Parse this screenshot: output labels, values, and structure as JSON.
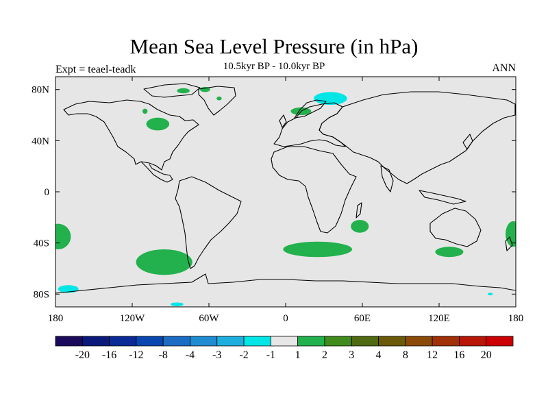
{
  "title": "Mean Sea Level Pressure (in hPa)",
  "subtitle": "10.5kyr BP - 10.0kyr BP",
  "left_label": "Expt = teael-teadk",
  "right_label": "ANN",
  "colors": {
    "background_field": "#e6e6e6",
    "coast": "#000000",
    "green": "#22b14c",
    "cyan": "#00e6e6"
  },
  "map": {
    "lon_range": [
      -180,
      180
    ],
    "lat_range": [
      -90,
      90
    ],
    "lat_ticks": [
      {
        "value": 80,
        "label": "80N"
      },
      {
        "value": 40,
        "label": "40N"
      },
      {
        "value": 0,
        "label": "0"
      },
      {
        "value": -40,
        "label": "40S"
      },
      {
        "value": -80,
        "label": "80S"
      }
    ],
    "lon_ticks": [
      {
        "value": -180,
        "label": "180"
      },
      {
        "value": -120,
        "label": "120W"
      },
      {
        "value": -60,
        "label": "60W"
      },
      {
        "value": 0,
        "label": "0"
      },
      {
        "value": 60,
        "label": "60E"
      },
      {
        "value": 120,
        "label": "120E"
      },
      {
        "value": 180,
        "label": "180"
      }
    ],
    "anomaly_regions": [
      {
        "name": "north-atlantic-nw",
        "sign": "positive",
        "lon": -100,
        "lat": 53,
        "rlon": 9,
        "rlat": 5
      },
      {
        "name": "hudson-bay-patch",
        "sign": "positive",
        "lon": -110,
        "lat": 63,
        "rlon": 2,
        "rlat": 2
      },
      {
        "name": "arctic-canada-patch",
        "sign": "positive",
        "lon": -80,
        "lat": 79,
        "rlon": 5,
        "rlat": 2
      },
      {
        "name": "arctic-canada-patch-2",
        "sign": "positive",
        "lon": -63,
        "lat": 80,
        "rlon": 4,
        "rlat": 2
      },
      {
        "name": "greenland-east-patch",
        "sign": "positive",
        "lon": -52,
        "lat": 73,
        "rlon": 2,
        "rlat": 1.5
      },
      {
        "name": "scandinavia",
        "sign": "positive",
        "lon": 12,
        "lat": 63,
        "rlon": 8,
        "rlat": 3
      },
      {
        "name": "barents-cyan",
        "sign": "negative",
        "lon": 35,
        "lat": 73,
        "rlon": 13,
        "rlat": 5
      },
      {
        "name": "south-pacific-west",
        "sign": "positive",
        "lon": -178,
        "lat": -35,
        "rlon": 10,
        "rlat": 10
      },
      {
        "name": "south-pacific-east",
        "sign": "positive",
        "lon": -95,
        "lat": -55,
        "rlon": 22,
        "rlat": 10
      },
      {
        "name": "south-atlantic",
        "sign": "positive",
        "lon": 25,
        "lat": -45,
        "rlon": 27,
        "rlat": 6
      },
      {
        "name": "south-indian",
        "sign": "positive",
        "lon": 58,
        "lat": -27,
        "rlon": 7,
        "rlat": 5
      },
      {
        "name": "south-australia",
        "sign": "positive",
        "lon": 128,
        "lat": -47,
        "rlon": 11,
        "rlat": 4
      },
      {
        "name": "tasman",
        "sign": "positive",
        "lon": 178,
        "lat": -33,
        "rlon": 6,
        "rlat": 10
      },
      {
        "name": "ross-sea-cyan",
        "sign": "negative",
        "lon": -170,
        "lat": -76,
        "rlon": 8,
        "rlat": 3
      },
      {
        "name": "antarctic-cyan-small",
        "sign": "negative",
        "lon": -85,
        "lat": -88,
        "rlon": 5,
        "rlat": 1.5
      },
      {
        "name": "antarctic-cyan-east",
        "sign": "negative",
        "lon": 160,
        "lat": -80,
        "rlon": 2,
        "rlat": 1
      }
    ]
  },
  "colorbar": {
    "colors": [
      "#1a0a5c",
      "#0b1a7a",
      "#0a2a96",
      "#0a46b0",
      "#1c6cc4",
      "#1f8cd2",
      "#1eaedd",
      "#00e6e6",
      "#e6e6e6",
      "#22b14c",
      "#3f8c1c",
      "#4f6a10",
      "#6a5a0a",
      "#8a4a08",
      "#a03006",
      "#b81606",
      "#cc0000"
    ],
    "labels": [
      "-20",
      "-16",
      "-12",
      "-8",
      "-4",
      "-3",
      "-2",
      "-1",
      "1",
      "2",
      "3",
      "4",
      "8",
      "12",
      "16",
      "20"
    ]
  }
}
